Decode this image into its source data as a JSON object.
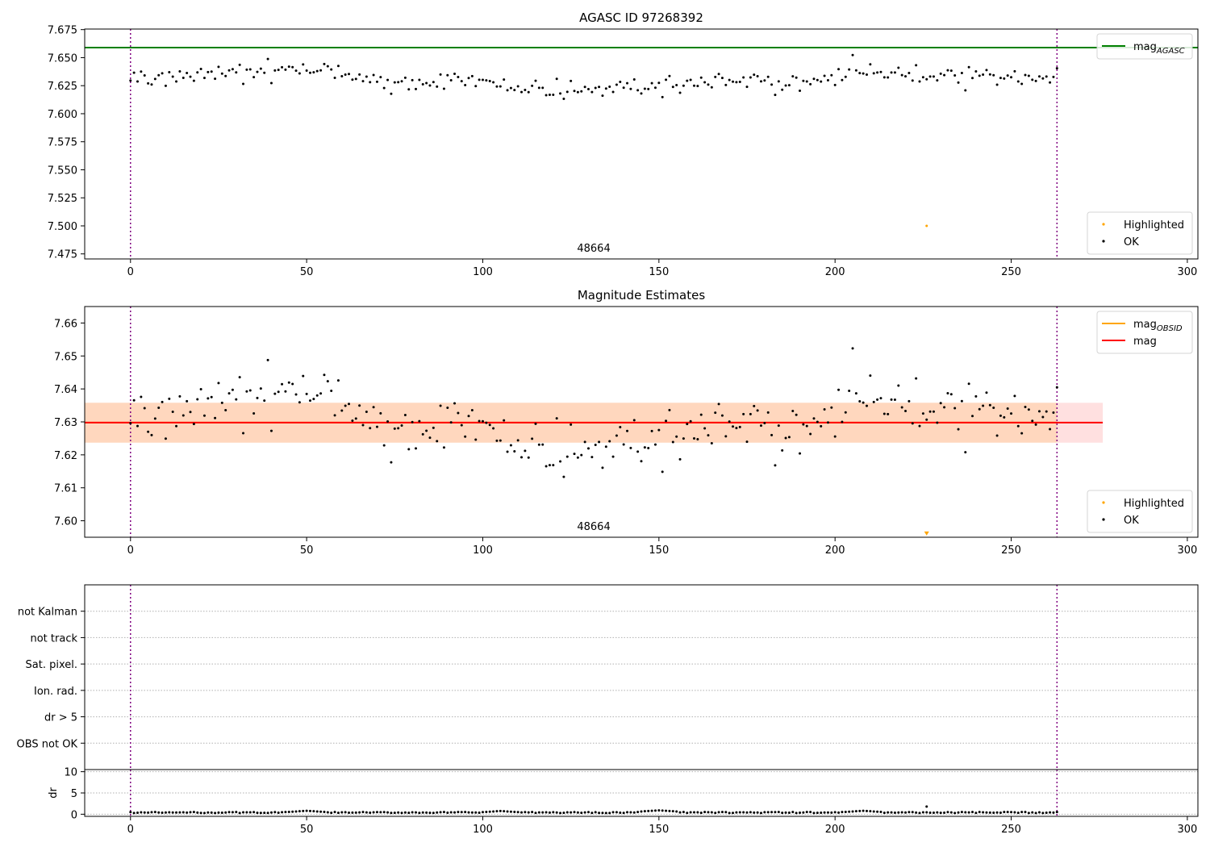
{
  "chart_data": [
    {
      "type": "scatter",
      "title": "AGASC ID 97268392",
      "xlim": [
        -13,
        303
      ],
      "ylim": [
        7.4705,
        7.6755
      ],
      "x_ticks": [
        "0",
        "50",
        "100",
        "150",
        "200",
        "250",
        "300"
      ],
      "y_ticks": [
        "7.475",
        "7.500",
        "7.525",
        "7.550",
        "7.575",
        "7.600",
        "7.625",
        "7.650",
        "7.675"
      ],
      "obsid_label": "48664",
      "obsid_boundaries": [
        0,
        263
      ],
      "reference_lines": [
        {
          "name": "mag_AGASC",
          "label_main": "mag",
          "label_sub": "AGASC",
          "value": 7.659,
          "color": "#008000"
        }
      ],
      "series": [
        {
          "name": "Highlighted",
          "color": "#ffa500",
          "points": [
            [
              226,
              7.5
            ]
          ]
        },
        {
          "name": "OK",
          "color": "#000000",
          "mean": 7.6295,
          "trend": [
            [
              0,
              7.631
            ],
            [
              35,
              7.637
            ],
            [
              50,
              7.636
            ],
            [
              70,
              7.63
            ],
            [
              100,
              7.628
            ],
            [
              110,
              7.622
            ],
            [
              122,
              7.619
            ],
            [
              140,
              7.623
            ],
            [
              160,
              7.627
            ],
            [
              180,
              7.629
            ],
            [
              195,
              7.628
            ],
            [
              205,
              7.637
            ],
            [
              215,
              7.634
            ],
            [
              240,
              7.636
            ],
            [
              263,
              7.631
            ]
          ]
        }
      ],
      "legends": [
        {
          "position": "top-right",
          "entries": [
            {
              "label_main": "mag",
              "label_sub": "AGASC",
              "kind": "line",
              "color": "#008000"
            }
          ]
        },
        {
          "position": "bottom-right",
          "entries": [
            {
              "label_main": "Highlighted",
              "kind": "dot",
              "color": "#ffa500"
            },
            {
              "label_main": "OK",
              "kind": "dot",
              "color": "#000000"
            }
          ]
        }
      ]
    },
    {
      "type": "scatter",
      "title": "Magnitude Estimates",
      "xlim": [
        -13,
        303
      ],
      "ylim": [
        7.595,
        7.665
      ],
      "x_ticks": [
        "0",
        "50",
        "100",
        "150",
        "200",
        "250",
        "300"
      ],
      "y_ticks": [
        "7.60",
        "7.61",
        "7.62",
        "7.63",
        "7.64",
        "7.65",
        "7.66"
      ],
      "obsid_label": "48664",
      "obsid_boundaries": [
        0,
        263
      ],
      "reference_lines": [
        {
          "name": "mag_OBSID",
          "label_main": "mag",
          "label_sub": "OBSID",
          "value": 7.6298,
          "band": [
            7.6237,
            7.6358
          ],
          "x_range": [
            -13,
            263
          ],
          "color": "#ffa500"
        },
        {
          "name": "mag",
          "label_main": "mag",
          "value": 7.6298,
          "band": [
            7.6237,
            7.6358
          ],
          "x_range": [
            -13,
            276
          ],
          "color": "#ff0000"
        }
      ],
      "series": [
        {
          "name": "Highlighted",
          "color": "#ffa500",
          "points": [
            [
              226,
              7.596
            ]
          ]
        },
        {
          "name": "OK",
          "color": "#000000",
          "mean": 7.6295,
          "trend": [
            [
              0,
              7.631
            ],
            [
              35,
              7.637
            ],
            [
              50,
              7.636
            ],
            [
              70,
              7.63
            ],
            [
              100,
              7.628
            ],
            [
              110,
              7.622
            ],
            [
              122,
              7.619
            ],
            [
              140,
              7.623
            ],
            [
              160,
              7.627
            ],
            [
              180,
              7.629
            ],
            [
              195,
              7.628
            ],
            [
              205,
              7.637
            ],
            [
              215,
              7.634
            ],
            [
              240,
              7.636
            ],
            [
              263,
              7.631
            ]
          ]
        }
      ],
      "legends": [
        {
          "position": "top-right",
          "entries": [
            {
              "label_main": "mag",
              "label_sub": "OBSID",
              "kind": "line",
              "color": "#ffa500"
            },
            {
              "label_main": "mag",
              "kind": "line",
              "color": "#ff0000"
            }
          ]
        },
        {
          "position": "bottom-right",
          "entries": [
            {
              "label_main": "Highlighted",
              "kind": "dot",
              "color": "#ffa500"
            },
            {
              "label_main": "OK",
              "kind": "dot",
              "color": "#000000"
            }
          ]
        }
      ]
    },
    {
      "type": "scatter",
      "xlim": [
        -13,
        303
      ],
      "categories": [
        "OBS not OK",
        "dr > 5",
        "Ion. rad.",
        "Sat. pixel.",
        "not track",
        "not Kalman"
      ],
      "obsid_boundaries": [
        0,
        263
      ],
      "series": []
    },
    {
      "type": "scatter",
      "ylabel": "dr",
      "xlim": [
        -13,
        303
      ],
      "ylim": [
        -0.5,
        10.5
      ],
      "x_ticks": [
        "0",
        "50",
        "100",
        "150",
        "200",
        "250",
        "300"
      ],
      "y_ticks": [
        "0",
        "5",
        "10"
      ],
      "obsid_boundaries": [
        0,
        263
      ],
      "series": [
        {
          "name": "OK",
          "color": "#000000",
          "typical": 0.4,
          "peaks": [
            [
              50,
              0.8
            ],
            [
              105,
              0.75
            ],
            [
              150,
              0.9
            ],
            [
              208,
              0.8
            ]
          ],
          "points": [
            [
              226,
              1.8
            ]
          ]
        }
      ]
    }
  ]
}
